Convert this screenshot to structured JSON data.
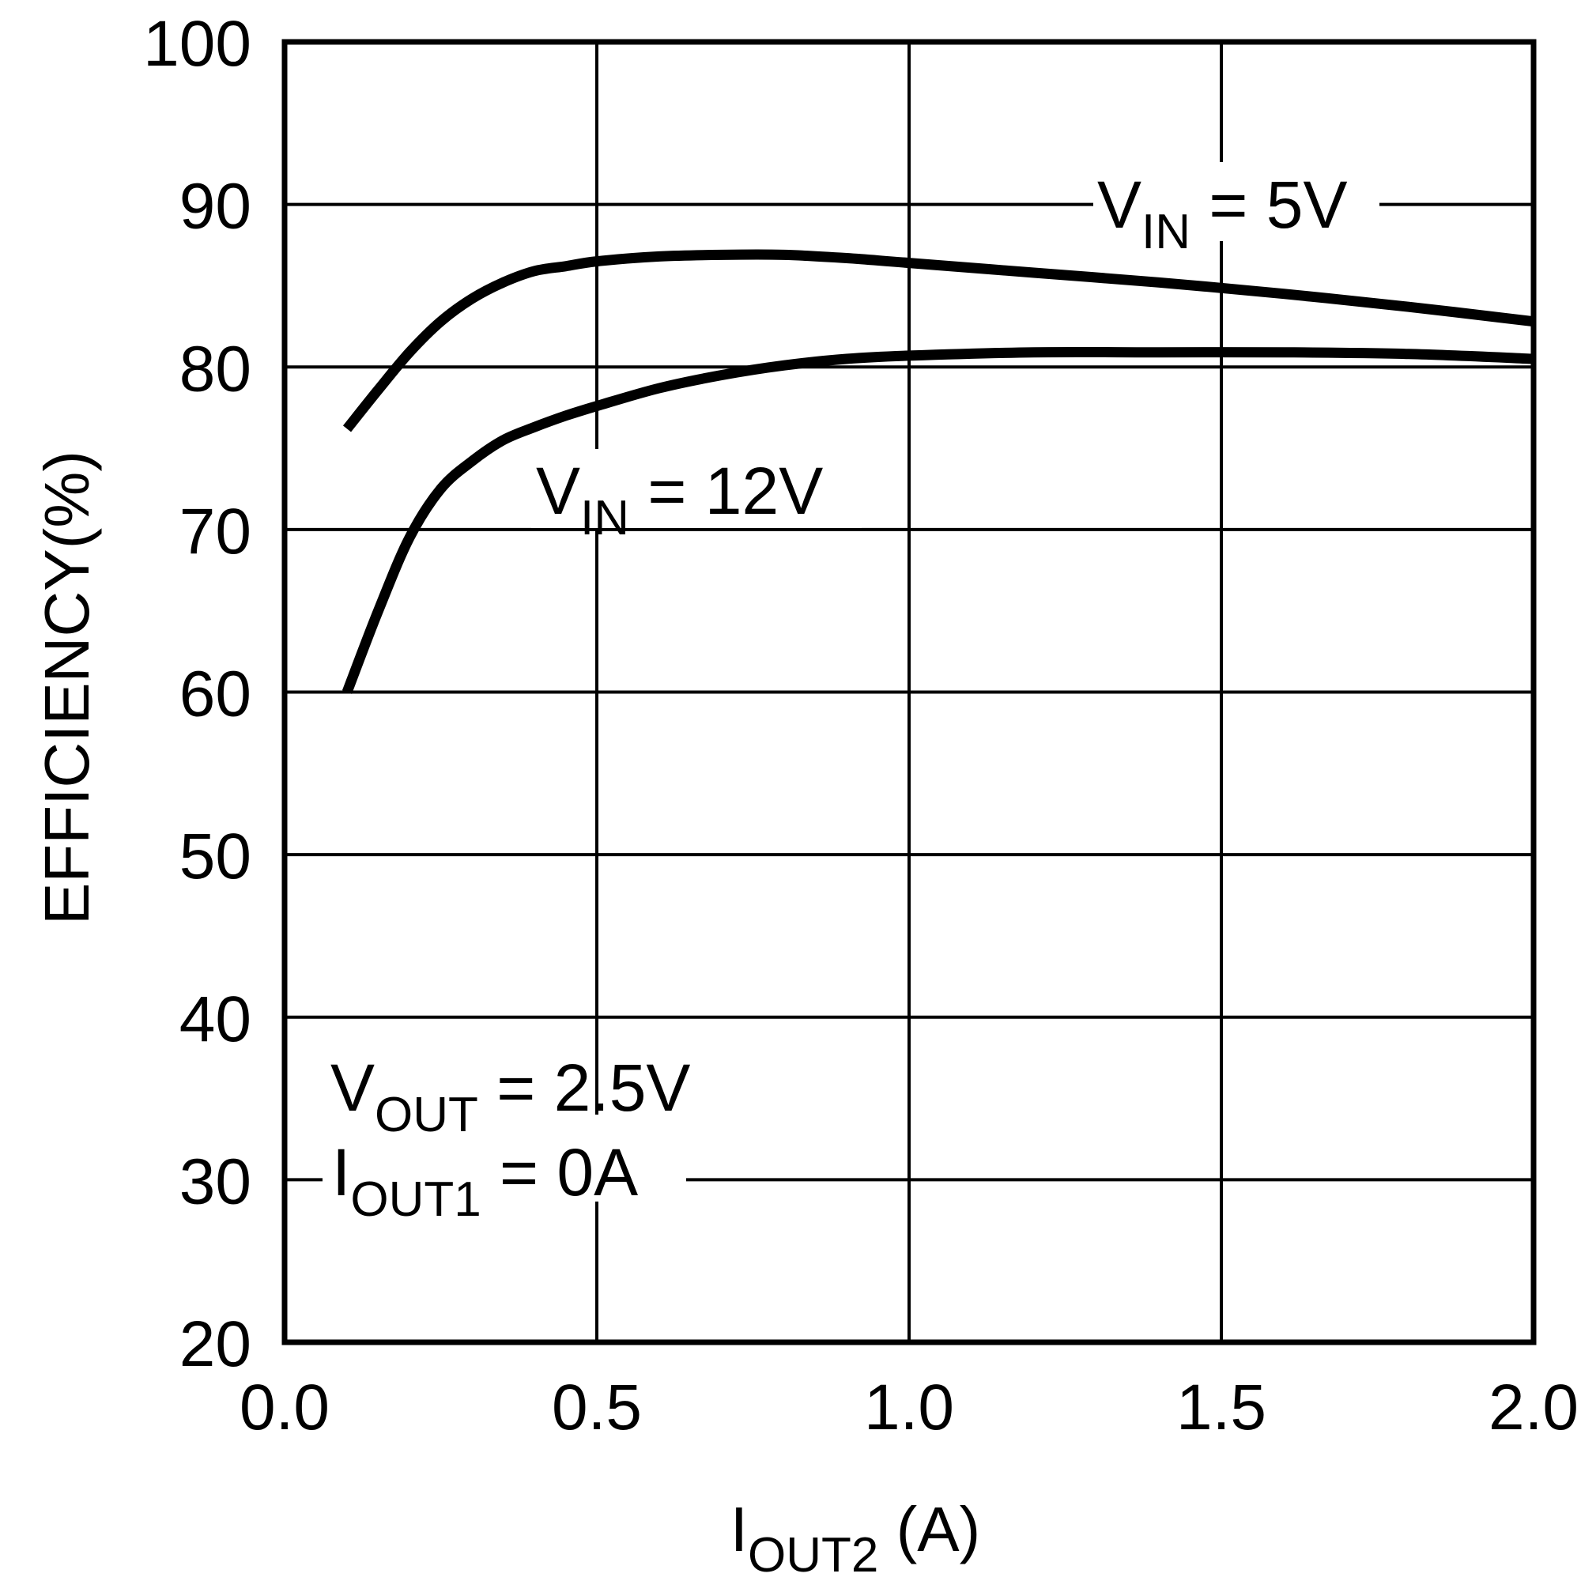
{
  "chart_data": {
    "type": "line",
    "title": "",
    "xlabel": "I",
    "xlabel_sub": "OUT2",
    "xlabel_unit": " (A)",
    "ylabel": "EFFICIENCY(%)",
    "xlim": [
      0.0,
      2.0
    ],
    "ylim": [
      20,
      100
    ],
    "x_ticks": [
      "0.0",
      "0.5",
      "1.0",
      "1.5",
      "2.0"
    ],
    "y_ticks": [
      "100",
      "90",
      "80",
      "70",
      "60",
      "50",
      "40",
      "30",
      "20"
    ],
    "grid": true,
    "series": [
      {
        "name": "VIN = 5V",
        "x": [
          0.1,
          0.15,
          0.2,
          0.25,
          0.3,
          0.35,
          0.4,
          0.45,
          0.5,
          0.6,
          0.7,
          0.8,
          0.9,
          1.0,
          1.2,
          1.4,
          1.6,
          1.8,
          2.0
        ],
        "y": [
          76.2,
          78.6,
          80.9,
          82.8,
          84.2,
          85.2,
          85.9,
          86.2,
          86.5,
          86.8,
          86.9,
          86.9,
          86.7,
          86.4,
          85.8,
          85.2,
          84.5,
          83.7,
          82.8
        ]
      },
      {
        "name": "VIN = 12V",
        "x": [
          0.1,
          0.15,
          0.2,
          0.25,
          0.3,
          0.35,
          0.4,
          0.45,
          0.5,
          0.6,
          0.7,
          0.8,
          0.9,
          1.0,
          1.2,
          1.4,
          1.6,
          1.8,
          2.0
        ],
        "y": [
          60.0,
          65.0,
          69.5,
          72.5,
          74.2,
          75.5,
          76.3,
          77.0,
          77.6,
          78.7,
          79.5,
          80.1,
          80.5,
          80.7,
          80.9,
          80.9,
          80.9,
          80.8,
          80.5
        ]
      }
    ],
    "annotations": {
      "vin5": {
        "main": "V",
        "sub": "IN",
        "rest": " = 5V"
      },
      "vin12": {
        "main": "V",
        "sub": "IN",
        "rest": " = 12V"
      },
      "vout": {
        "main": "V",
        "sub": "OUT",
        "rest": " = 2.5V"
      },
      "iout1": {
        "main": "I",
        "sub": "OUT1",
        "rest": " = 0A"
      }
    }
  }
}
